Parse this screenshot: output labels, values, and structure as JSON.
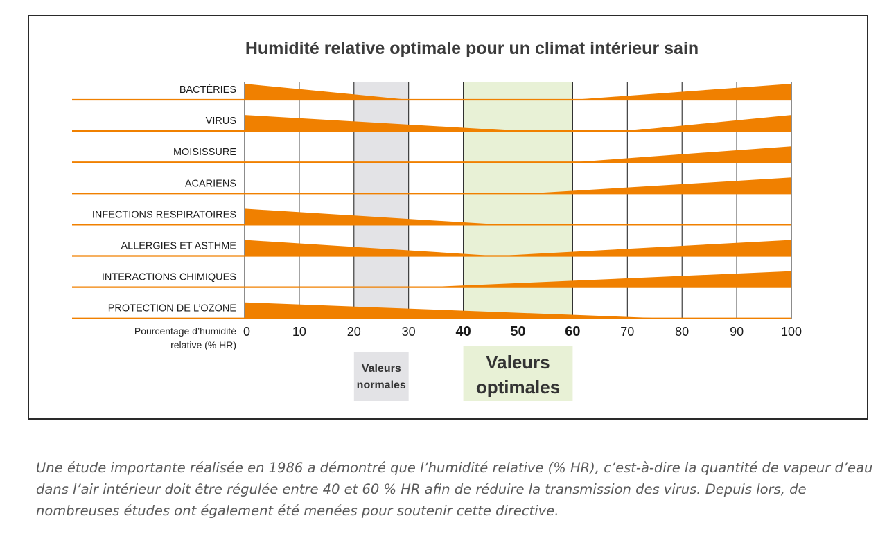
{
  "chart_data": {
    "type": "area",
    "title": "Humidité relative optimale pour un climat intérieur sain",
    "xlabel": "Pourcentage d'humidité relative (% HR)",
    "xlabel_lines": [
      "Pourcentage d’humidité",
      "relative (% HR)"
    ],
    "x_ticks": [
      0,
      10,
      20,
      30,
      40,
      50,
      60,
      70,
      80,
      90,
      100
    ],
    "x_ticks_bold": [
      40,
      50,
      60
    ],
    "xlim": [
      0,
      100
    ],
    "bar_color": "#f08000",
    "zones": [
      {
        "label_lines": [
          "Valeurs",
          "normales"
        ],
        "range": [
          20,
          30
        ],
        "color": "#e3e3e6"
      },
      {
        "label_lines": [
          "Valeurs",
          "optimales"
        ],
        "range": [
          40,
          60
        ],
        "color": "#e8f1d6"
      }
    ],
    "series": [
      {
        "name": "BACTÉRIES",
        "points": [
          [
            0,
            1
          ],
          [
            30,
            0
          ],
          [
            60,
            0
          ],
          [
            100,
            1
          ]
        ]
      },
      {
        "name": "VIRUS",
        "points": [
          [
            0,
            1
          ],
          [
            50,
            0
          ],
          [
            70,
            0
          ],
          [
            100,
            1
          ]
        ]
      },
      {
        "name": "MOISISSURE",
        "points": [
          [
            0,
            0
          ],
          [
            60,
            0
          ],
          [
            100,
            1
          ]
        ]
      },
      {
        "name": "ACARIENS",
        "points": [
          [
            0,
            0
          ],
          [
            52,
            0
          ],
          [
            100,
            1
          ]
        ]
      },
      {
        "name": "INFECTIONS RESPIRATOIRES",
        "points": [
          [
            0,
            1
          ],
          [
            47,
            0
          ],
          [
            100,
            0
          ]
        ]
      },
      {
        "name": "ALLERGIES ET ASTHME",
        "points": [
          [
            0,
            1
          ],
          [
            46,
            0
          ],
          [
            100,
            1
          ]
        ]
      },
      {
        "name": "INTERACTIONS CHIMIQUES",
        "points": [
          [
            0,
            0
          ],
          [
            33,
            0
          ],
          [
            100,
            1
          ]
        ]
      },
      {
        "name": "PROTECTION DE L’OZONE",
        "points": [
          [
            0,
            1
          ],
          [
            77,
            0
          ],
          [
            100,
            0
          ]
        ]
      }
    ]
  },
  "caption": "Une  étude importante réalisée en 1986 a démontré que l’humidité relative (% HR), c’est-à-dire la quantité de vapeur d’eau dans l’air intérieur  doit être régulée entre 40 et 60 % HR afin de réduire la transmission des virus. Depuis lors, de nombreuses études ont également été menées pour soutenir cette directive."
}
